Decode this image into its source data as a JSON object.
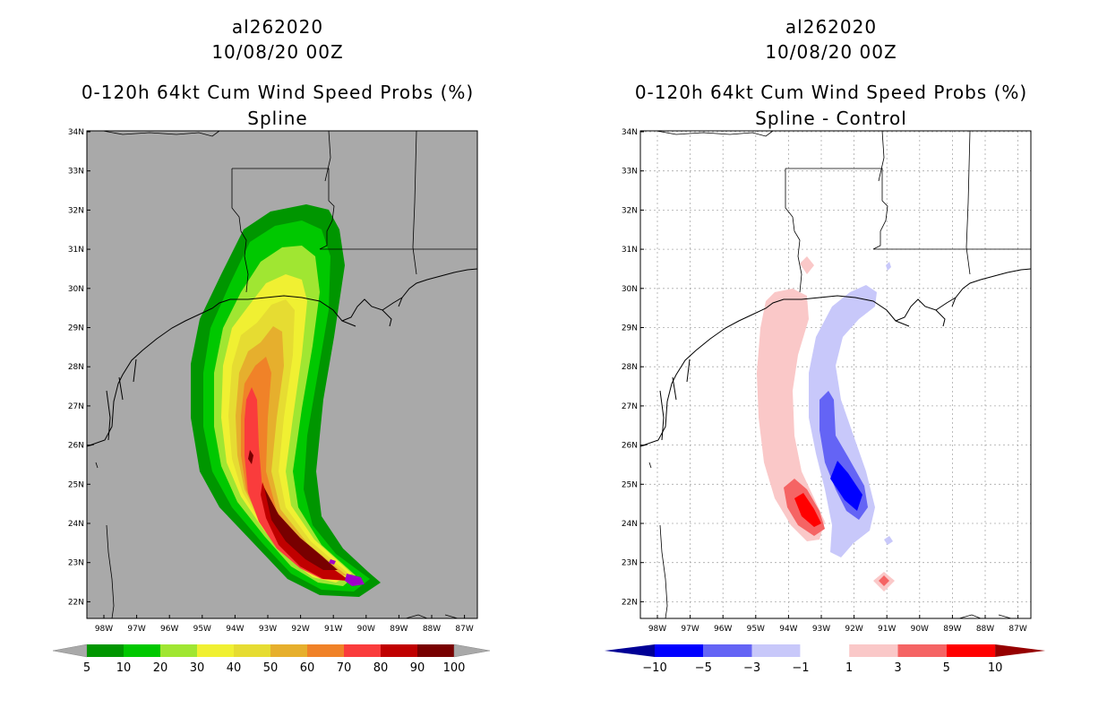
{
  "storm_id": "al262020",
  "datetime": "10/08/20 00Z",
  "left_panel": {
    "product": "0-120h 64kt Cum Wind Speed Probs (%)",
    "subtitle": "Spline",
    "colors": {
      "land_ocean": "#a9a9a9",
      "c5": "#009600",
      "c10": "#00c800",
      "c20": "#a0e632",
      "c30": "#f0f032",
      "c40": "#e6dc32",
      "c50": "#e6af2d",
      "c60": "#f08228",
      "c70": "#fa3c3c",
      "c80": "#c00000",
      "c90": "#780000",
      "c100": "#a000c8"
    },
    "colorbar": {
      "labels": [
        "5",
        "10",
        "20",
        "30",
        "40",
        "50",
        "60",
        "70",
        "80",
        "90",
        "100"
      ]
    }
  },
  "right_panel": {
    "product": "0-120h 64kt Cum Wind Speed Probs (%)",
    "subtitle": "Spline - Control",
    "colors": {
      "n10": "#000096",
      "n5": "#0000ff",
      "n3": "#6464f5",
      "n1": "#c8c8fa",
      "zero": "#ffffff",
      "p1": "#fac8c8",
      "p3": "#f56464",
      "p5": "#ff0000",
      "p10": "#960000"
    },
    "colorbar": {
      "labels": [
        "-10",
        "-5",
        "-3",
        "-1",
        "1",
        "3",
        "5",
        "10"
      ]
    }
  },
  "map": {
    "lat_labels": [
      "34N",
      "33N",
      "32N",
      "31N",
      "30N",
      "29N",
      "28N",
      "27N",
      "26N",
      "25N",
      "24N",
      "23N",
      "22N"
    ],
    "lon_labels": [
      "98W",
      "97W",
      "96W",
      "95W",
      "94W",
      "93W",
      "92W",
      "91W",
      "90W",
      "89W",
      "88W",
      "87W"
    ]
  }
}
